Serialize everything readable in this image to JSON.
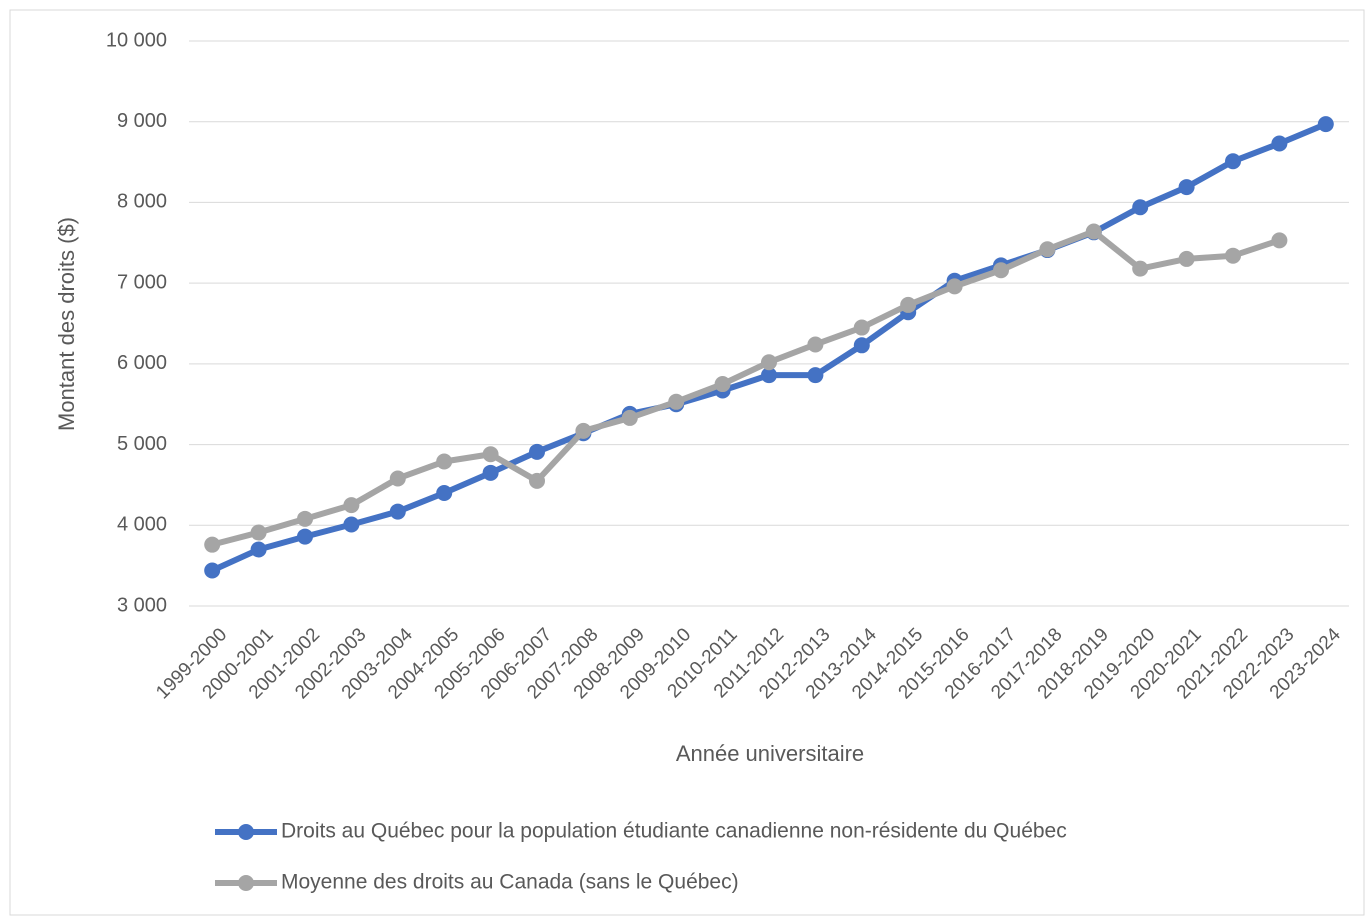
{
  "chart_data": {
    "type": "line",
    "y_axis_label": "Montant des droits ($)",
    "x_axis_label": "Année universitaire",
    "categories": [
      "1999-2000",
      "2000-2001",
      "2001-2002",
      "2002-2003",
      "2003-2004",
      "2004-2005",
      "2005-2006",
      "2006-2007",
      "2007-2008",
      "2008-2009",
      "2009-2010",
      "2010-2011",
      "2011-2012",
      "2012-2013",
      "2013-2014",
      "2014-2015",
      "2015-2016",
      "2016-2017",
      "2017-2018",
      "2018-2019",
      "2019-2020",
      "2020-2021",
      "2021-2022",
      "2022-2023",
      "2023-2024"
    ],
    "series": [
      {
        "name": "Droits au Québec pour la population étudiante canadienne non-résidente du Québec",
        "color": "#4472c4",
        "values": [
          3440,
          3700,
          3860,
          4010,
          4170,
          4400,
          4650,
          4910,
          5140,
          5380,
          5500,
          5670,
          5860,
          5860,
          6230,
          6640,
          7030,
          7220,
          7410,
          7630,
          7940,
          8190,
          8510,
          8730,
          8970
        ]
      },
      {
        "name": "Moyenne des droits au Canada (sans le Québec)",
        "color": "#a5a5a5",
        "values": [
          3760,
          3910,
          4080,
          4250,
          4580,
          4790,
          4880,
          4550,
          5170,
          5330,
          5530,
          5750,
          6020,
          6240,
          6450,
          6730,
          6960,
          7160,
          7420,
          7640,
          7180,
          7300,
          7340,
          7530,
          null
        ]
      }
    ],
    "ylim": [
      3000,
      10000
    ],
    "yticks": [
      {
        "value": 3000,
        "label": "3 000"
      },
      {
        "value": 4000,
        "label": "4 000"
      },
      {
        "value": 5000,
        "label": "5 000"
      },
      {
        "value": 6000,
        "label": "6 000"
      },
      {
        "value": 7000,
        "label": "7 000"
      },
      {
        "value": 8000,
        "label": "8 000"
      },
      {
        "value": 9000,
        "label": "9 000"
      },
      {
        "value": 10000,
        "label": "10 000"
      }
    ],
    "grid": true,
    "legend": "bottom"
  }
}
